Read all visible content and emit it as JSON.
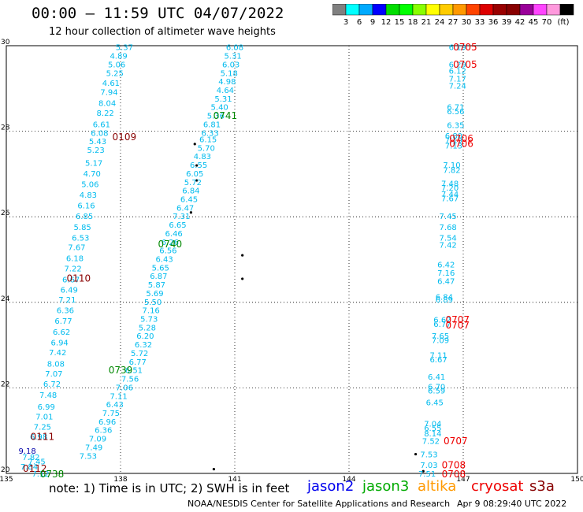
{
  "header": {
    "title": "00:00 – 11:59 UTC 04/07/2022",
    "subtitle": "12 hour collection of altimeter wave heights"
  },
  "colorbar": {
    "colors": [
      "#808080",
      "#00ffff",
      "#00aaff",
      "#0000ff",
      "#00dd00",
      "#00ff00",
      "#88ff00",
      "#ffff00",
      "#ffcc00",
      "#ff9900",
      "#ff4400",
      "#dd0000",
      "#990000",
      "#880000",
      "#990099",
      "#ff44ff",
      "#ff99dd",
      "#000000"
    ],
    "labels": [
      "3",
      "6",
      "9",
      "12",
      "15",
      "18",
      "21",
      "24",
      "27",
      "30",
      "33",
      "36",
      "39",
      "42",
      "45",
      "70",
      "(ft)"
    ]
  },
  "axes": {
    "x_ticks": [
      "135",
      "138",
      "141",
      "144",
      "147",
      "150"
    ],
    "y_ticks": [
      "30",
      "28",
      "26",
      "24",
      "22",
      "20"
    ]
  },
  "tracks": [
    {
      "color": "#00bbee",
      "items": [
        {
          "t": "5.37",
          "lon": 138.1,
          "lat": 29.95
        },
        {
          "t": "4.89",
          "lon": 137.95,
          "lat": 29.75
        },
        {
          "t": "5.06",
          "lon": 137.9,
          "lat": 29.55
        },
        {
          "t": "5.25",
          "lon": 137.85,
          "lat": 29.35
        },
        {
          "t": "4.61",
          "lon": 137.75,
          "lat": 29.12
        },
        {
          "t": "7.94",
          "lon": 137.7,
          "lat": 28.9
        },
        {
          "t": "8.04",
          "lon": 137.65,
          "lat": 28.65
        },
        {
          "t": "8.22",
          "lon": 137.6,
          "lat": 28.42
        },
        {
          "t": "6.61",
          "lon": 137.5,
          "lat": 28.15
        },
        {
          "t": "6.08",
          "lon": 137.45,
          "lat": 27.95
        },
        {
          "t": "5.43",
          "lon": 137.4,
          "lat": 27.75
        },
        {
          "t": "5.23",
          "lon": 137.35,
          "lat": 27.55
        },
        {
          "t": "5.17",
          "lon": 137.3,
          "lat": 27.25
        },
        {
          "t": "4.70",
          "lon": 137.25,
          "lat": 27.0
        },
        {
          "t": "5.06",
          "lon": 137.2,
          "lat": 26.75
        },
        {
          "t": "4.83",
          "lon": 137.15,
          "lat": 26.5
        },
        {
          "t": "6.16",
          "lon": 137.1,
          "lat": 26.25
        },
        {
          "t": "6.85",
          "lon": 137.05,
          "lat": 26.0
        },
        {
          "t": "5.85",
          "lon": 137.0,
          "lat": 25.75
        },
        {
          "t": "6.53",
          "lon": 136.95,
          "lat": 25.5
        },
        {
          "t": "7.67",
          "lon": 136.85,
          "lat": 25.28
        },
        {
          "t": "6.18",
          "lon": 136.8,
          "lat": 25.02
        },
        {
          "t": "7.22",
          "lon": 136.75,
          "lat": 24.78
        },
        {
          "t": "6.67",
          "lon": 136.7,
          "lat": 24.52
        },
        {
          "t": "6.49",
          "lon": 136.65,
          "lat": 24.28
        },
        {
          "t": "7.21",
          "lon": 136.6,
          "lat": 24.05
        },
        {
          "t": "6.36",
          "lon": 136.55,
          "lat": 23.8
        },
        {
          "t": "6.77",
          "lon": 136.5,
          "lat": 23.55
        },
        {
          "t": "6.62",
          "lon": 136.45,
          "lat": 23.3
        },
        {
          "t": "6.94",
          "lon": 136.4,
          "lat": 23.05
        },
        {
          "t": "7.42",
          "lon": 136.35,
          "lat": 22.82
        },
        {
          "t": "8.08",
          "lon": 136.3,
          "lat": 22.55
        },
        {
          "t": "7.07",
          "lon": 136.25,
          "lat": 22.32
        },
        {
          "t": "6.72",
          "lon": 136.2,
          "lat": 22.08
        },
        {
          "t": "7.48",
          "lon": 136.1,
          "lat": 21.82
        },
        {
          "t": "6.99",
          "lon": 136.05,
          "lat": 21.55
        },
        {
          "t": "7.01",
          "lon": 136.0,
          "lat": 21.32
        },
        {
          "t": "7.25",
          "lon": 135.95,
          "lat": 21.08
        },
        {
          "t": "6.98",
          "lon": 135.85,
          "lat": 20.85
        },
        {
          "t": "7.82",
          "lon": 135.65,
          "lat": 20.37
        },
        {
          "t": "7.84",
          "lon": 135.6,
          "lat": 20.15
        },
        {
          "t": "7.45",
          "lon": 135.8,
          "lat": 20.27
        },
        {
          "t": "7.12",
          "lon": 135.9,
          "lat": 19.98
        }
      ]
    },
    {
      "color": "#00bbee",
      "items": [
        {
          "t": "6.08",
          "lon": 141.0,
          "lat": 29.95
        },
        {
          "t": "5.31",
          "lon": 140.95,
          "lat": 29.75
        },
        {
          "t": "6.03",
          "lon": 140.9,
          "lat": 29.55
        },
        {
          "t": "5.18",
          "lon": 140.85,
          "lat": 29.35
        },
        {
          "t": "4.98",
          "lon": 140.8,
          "lat": 29.15
        },
        {
          "t": "4.64",
          "lon": 140.75,
          "lat": 28.95
        },
        {
          "t": "5.31",
          "lon": 140.7,
          "lat": 28.75
        },
        {
          "t": "5.40",
          "lon": 140.6,
          "lat": 28.55
        },
        {
          "t": "5.36",
          "lon": 140.5,
          "lat": 28.35
        },
        {
          "t": "6.81",
          "lon": 140.4,
          "lat": 28.15
        },
        {
          "t": "6.33",
          "lon": 140.35,
          "lat": 27.95
        },
        {
          "t": "6.15",
          "lon": 140.3,
          "lat": 27.8
        },
        {
          "t": "5.70",
          "lon": 140.25,
          "lat": 27.6
        },
        {
          "t": "4.83",
          "lon": 140.15,
          "lat": 27.4
        },
        {
          "t": "6.55",
          "lon": 140.05,
          "lat": 27.2
        },
        {
          "t": "6.05",
          "lon": 139.95,
          "lat": 27.0
        },
        {
          "t": "5.72",
          "lon": 139.9,
          "lat": 26.8
        },
        {
          "t": "6.84",
          "lon": 139.85,
          "lat": 26.6
        },
        {
          "t": "6.45",
          "lon": 139.8,
          "lat": 26.4
        },
        {
          "t": "6.47",
          "lon": 139.7,
          "lat": 26.2
        },
        {
          "t": "7.31",
          "lon": 139.6,
          "lat": 26.0
        },
        {
          "t": "6.65",
          "lon": 139.5,
          "lat": 25.8
        },
        {
          "t": "6.46",
          "lon": 139.4,
          "lat": 25.6
        },
        {
          "t": "6.26",
          "lon": 139.3,
          "lat": 25.4
        },
        {
          "t": "6.56",
          "lon": 139.25,
          "lat": 25.2
        },
        {
          "t": "6.43",
          "lon": 139.15,
          "lat": 25.0
        },
        {
          "t": "5.65",
          "lon": 139.05,
          "lat": 24.8
        },
        {
          "t": "6.87",
          "lon": 139.0,
          "lat": 24.6
        },
        {
          "t": "5.87",
          "lon": 138.95,
          "lat": 24.4
        },
        {
          "t": "5.69",
          "lon": 138.9,
          "lat": 24.2
        },
        {
          "t": "5.50",
          "lon": 138.85,
          "lat": 24.0
        },
        {
          "t": "7.16",
          "lon": 138.8,
          "lat": 23.8
        },
        {
          "t": "5.73",
          "lon": 138.75,
          "lat": 23.6
        },
        {
          "t": "5.28",
          "lon": 138.7,
          "lat": 23.4
        },
        {
          "t": "6.20",
          "lon": 138.65,
          "lat": 23.2
        },
        {
          "t": "6.32",
          "lon": 138.6,
          "lat": 23.0
        },
        {
          "t": "5.72",
          "lon": 138.5,
          "lat": 22.8
        },
        {
          "t": "6.77",
          "lon": 138.45,
          "lat": 22.6
        },
        {
          "t": "6.51",
          "lon": 138.35,
          "lat": 22.4
        },
        {
          "t": "7.56",
          "lon": 138.25,
          "lat": 22.2
        },
        {
          "t": "7.06",
          "lon": 138.1,
          "lat": 22.0
        },
        {
          "t": "7.11",
          "lon": 137.95,
          "lat": 21.8
        },
        {
          "t": "6.43",
          "lon": 137.85,
          "lat": 21.6
        },
        {
          "t": "7.75",
          "lon": 137.75,
          "lat": 21.4
        },
        {
          "t": "6.96",
          "lon": 137.65,
          "lat": 21.2
        },
        {
          "t": "6.36",
          "lon": 137.55,
          "lat": 21.0
        },
        {
          "t": "7.09",
          "lon": 137.4,
          "lat": 20.8
        },
        {
          "t": "7.49",
          "lon": 137.3,
          "lat": 20.6
        },
        {
          "t": "7.53",
          "lon": 137.15,
          "lat": 20.4
        }
      ]
    },
    {
      "color": "#00bbee",
      "items": [
        {
          "t": "6.19",
          "lon": 146.85,
          "lat": 29.95
        },
        {
          "t": "6.29",
          "lon": 146.85,
          "lat": 29.55
        },
        {
          "t": "6.12",
          "lon": 146.85,
          "lat": 29.4
        },
        {
          "t": "7.17",
          "lon": 146.85,
          "lat": 29.22
        },
        {
          "t": "7.24",
          "lon": 146.85,
          "lat": 29.05
        },
        {
          "t": "6.71",
          "lon": 146.8,
          "lat": 28.55
        },
        {
          "t": "6.56",
          "lon": 146.8,
          "lat": 28.45
        },
        {
          "t": "6.35",
          "lon": 146.8,
          "lat": 28.13
        },
        {
          "t": "6.80",
          "lon": 146.75,
          "lat": 27.88
        },
        {
          "t": "7.19",
          "lon": 146.75,
          "lat": 27.78
        },
        {
          "t": "7.13",
          "lon": 146.75,
          "lat": 27.65
        },
        {
          "t": "7.10",
          "lon": 146.7,
          "lat": 27.2
        },
        {
          "t": "7.82",
          "lon": 146.7,
          "lat": 27.08
        },
        {
          "t": "7.48",
          "lon": 146.65,
          "lat": 26.77
        },
        {
          "t": "7.20",
          "lon": 146.65,
          "lat": 26.67
        },
        {
          "t": "7.44",
          "lon": 146.65,
          "lat": 26.52
        },
        {
          "t": "7.67",
          "lon": 146.65,
          "lat": 26.42
        },
        {
          "t": "7.45",
          "lon": 146.6,
          "lat": 26.0
        },
        {
          "t": "7.68",
          "lon": 146.6,
          "lat": 25.75
        },
        {
          "t": "7.54",
          "lon": 146.6,
          "lat": 25.5
        },
        {
          "t": "7.42",
          "lon": 146.6,
          "lat": 25.33
        },
        {
          "t": "6.42",
          "lon": 146.55,
          "lat": 24.87
        },
        {
          "t": "7.16",
          "lon": 146.55,
          "lat": 24.68
        },
        {
          "t": "6.47",
          "lon": 146.55,
          "lat": 24.48
        },
        {
          "t": "6.84",
          "lon": 146.5,
          "lat": 24.12
        },
        {
          "t": "6.89",
          "lon": 146.5,
          "lat": 24.05
        },
        {
          "t": "6.62",
          "lon": 146.45,
          "lat": 23.58
        },
        {
          "t": "6.77",
          "lon": 146.45,
          "lat": 23.48
        },
        {
          "t": "7.65",
          "lon": 146.4,
          "lat": 23.2
        },
        {
          "t": "7.09",
          "lon": 146.4,
          "lat": 23.1
        },
        {
          "t": "7.11",
          "lon": 146.35,
          "lat": 22.75
        },
        {
          "t": "6.67",
          "lon": 146.35,
          "lat": 22.65
        },
        {
          "t": "6.41",
          "lon": 146.3,
          "lat": 22.25
        },
        {
          "t": "6.70",
          "lon": 146.3,
          "lat": 22.02
        },
        {
          "t": "6.59",
          "lon": 146.3,
          "lat": 21.92
        },
        {
          "t": "6.45",
          "lon": 146.25,
          "lat": 21.65
        },
        {
          "t": "7.04",
          "lon": 146.2,
          "lat": 21.15
        },
        {
          "t": "6.55",
          "lon": 146.2,
          "lat": 21.05
        },
        {
          "t": "8.14",
          "lon": 146.2,
          "lat": 20.92
        },
        {
          "t": "7.52",
          "lon": 146.15,
          "lat": 20.75
        },
        {
          "t": "7.53",
          "lon": 146.1,
          "lat": 20.43
        },
        {
          "t": "7.03",
          "lon": 146.1,
          "lat": 20.18
        },
        {
          "t": "7.51",
          "lon": 146.05,
          "lat": 19.98
        }
      ]
    }
  ],
  "dark_blue_values": [
    {
      "t": "9.18",
      "lon": 135.55,
      "lat": 20.52
    }
  ],
  "time_labels": [
    {
      "t": "0109",
      "lon": 138.1,
      "lat": 27.85,
      "color": "#880000"
    },
    {
      "t": "0110",
      "lon": 136.9,
      "lat": 24.55,
      "color": "#880000"
    },
    {
      "t": "0111",
      "lon": 135.95,
      "lat": 20.85,
      "color": "#880000"
    },
    {
      "t": "0112",
      "lon": 135.75,
      "lat": 20.1,
      "color": "#880000"
    },
    {
      "t": "0741",
      "lon": 140.75,
      "lat": 28.35,
      "color": "#008800"
    },
    {
      "t": "0740",
      "lon": 139.3,
      "lat": 25.35,
      "color": "#008800"
    },
    {
      "t": "0739",
      "lon": 138.0,
      "lat": 22.4,
      "color": "#008800"
    },
    {
      "t": "0738",
      "lon": 136.2,
      "lat": 19.97,
      "color": "#008800"
    },
    {
      "t": "0705",
      "lon": 147.05,
      "lat": 29.95,
      "color": "#ee0000"
    },
    {
      "t": "0705",
      "lon": 147.05,
      "lat": 29.55,
      "color": "#ee0000"
    },
    {
      "t": "0706",
      "lon": 146.95,
      "lat": 27.82,
      "color": "#ee0000"
    },
    {
      "t": "0706",
      "lon": 146.95,
      "lat": 27.7,
      "color": "#ee0000"
    },
    {
      "t": "0707",
      "lon": 146.85,
      "lat": 23.58,
      "color": "#ee0000"
    },
    {
      "t": "0707",
      "lon": 146.85,
      "lat": 23.45,
      "color": "#ee0000"
    },
    {
      "t": "0707",
      "lon": 146.8,
      "lat": 20.75,
      "color": "#ee0000"
    },
    {
      "t": "0708",
      "lon": 146.75,
      "lat": 20.18,
      "color": "#ee0000"
    },
    {
      "t": "0708",
      "lon": 146.75,
      "lat": 19.97,
      "color": "#ee0000"
    }
  ],
  "islands": [
    {
      "lon": 139.95,
      "lat": 27.7
    },
    {
      "lon": 140.0,
      "lat": 27.2
    },
    {
      "lon": 140.0,
      "lat": 26.85
    },
    {
      "lon": 139.85,
      "lat": 26.1
    },
    {
      "lon": 141.2,
      "lat": 25.1
    },
    {
      "lon": 141.2,
      "lat": 24.55
    },
    {
      "lon": 140.45,
      "lat": 20.1
    },
    {
      "lon": 145.75,
      "lat": 20.45
    },
    {
      "lon": 145.95,
      "lat": 20.05
    }
  ],
  "note": "note:  1) Time is in UTC;  2) SWH is in feet",
  "legend": [
    {
      "label": "jason2",
      "color": "#0000ee"
    },
    {
      "label": "jason3",
      "color": "#00aa00"
    },
    {
      "label": "altika",
      "color": "#ff9900"
    },
    {
      "label": "cryosat",
      "color": "#ee0000"
    },
    {
      "label": "s3a",
      "color": "#880000"
    }
  ],
  "footer": {
    "left": "NOAA/NESDIS Center for Satellite Applications and Research",
    "right": "Apr  9 08:29:40 UTC 2022"
  }
}
